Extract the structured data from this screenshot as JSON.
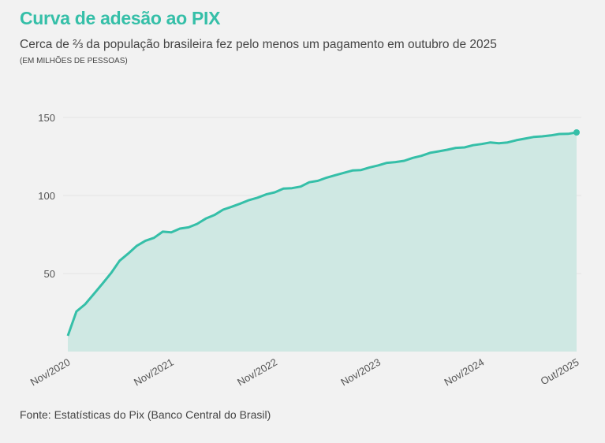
{
  "header": {
    "title": "Curva de adesão ao PIX",
    "subtitle": "Cerca de ⅔ da população brasileira fez pelo menos um pagamento em outubro de 2025",
    "unit": "(EM MILHÕES DE PESSOAS)"
  },
  "footer": {
    "source": "Fonte: Estatísticas do Pix (Banco Central do Brasil)"
  },
  "colors": {
    "accent": "#35bfa8",
    "fill": "#cfe8e3",
    "grid": "#e4e4e4"
  },
  "chart_data": {
    "type": "area",
    "title": "Curva de adesão ao PIX",
    "xlabel": "",
    "ylabel": "Milhões de pessoas",
    "ylim": [
      0,
      150
    ],
    "yticks": [
      50,
      100,
      150
    ],
    "grid": true,
    "x_start": "Nov/2020",
    "x_end": "Out/2025",
    "xtick_labels": [
      {
        "label": "Nov/2020",
        "index": 0
      },
      {
        "label": "Nov/2021",
        "index": 12
      },
      {
        "label": "Nov/2022",
        "index": 24
      },
      {
        "label": "Nov/2023",
        "index": 36
      },
      {
        "label": "Nov/2024",
        "index": 48
      },
      {
        "label": "Out/2025",
        "index": 59
      }
    ],
    "values": [
      10.1,
      25.7,
      30.3,
      36.8,
      43.4,
      50.2,
      58.2,
      62.8,
      67.8,
      71.0,
      72.9,
      76.8,
      76.4,
      78.8,
      79.6,
      81.8,
      85.2,
      87.5,
      90.9,
      92.8,
      94.8,
      97.0,
      98.6,
      100.7,
      102.0,
      104.4,
      104.7,
      105.7,
      108.5,
      109.4,
      111.4,
      113.0,
      114.5,
      116.0,
      116.3,
      118.0,
      119.3,
      120.9,
      121.4,
      122.2,
      124.1,
      125.4,
      127.3,
      128.3,
      129.3,
      130.5,
      130.8,
      132.2,
      133.0,
      134.0,
      133.5,
      134.0,
      135.4,
      136.4,
      137.5,
      137.9,
      138.5,
      139.4,
      139.5,
      140.4
    ]
  }
}
